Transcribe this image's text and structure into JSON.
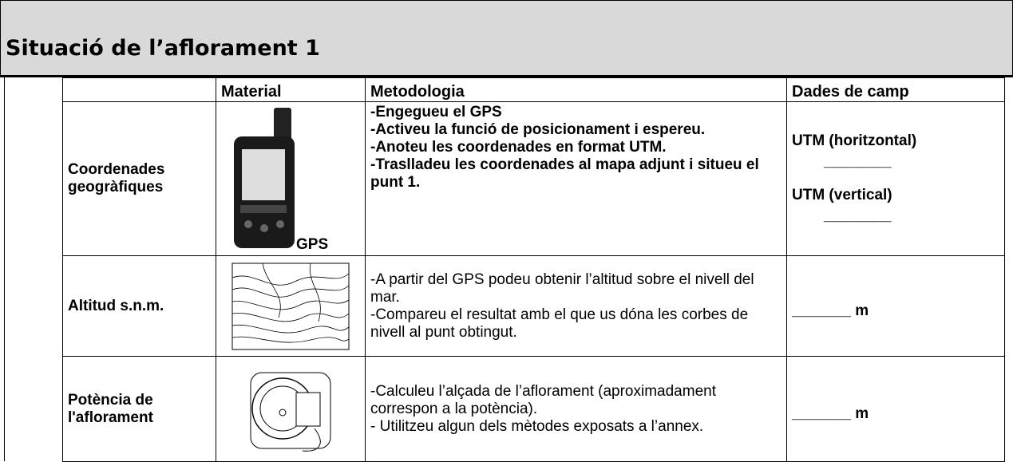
{
  "header": {
    "title": "Situació de l’aflorament 1"
  },
  "table": {
    "columns": [
      "Material",
      "Metodologia",
      "Dades de camp"
    ],
    "rows": [
      {
        "label": "Coordenades geogràfiques",
        "material_caption": "GPS",
        "methodology": [
          "-Engegueu el GPS",
          "-Activeu la funció de posicionament i espereu.",
          "-Anoteu les coordenades en format UTM.",
          "-Traslladeu les coordenades al mapa adjunt i situeu el punt 1."
        ],
        "field_data": [
          "UTM (horitzontal)",
          "________",
          "UTM (vertical)",
          "________"
        ]
      },
      {
        "label": "Altitud s.n.m.",
        "methodology": [
          "-A partir del GPS podeu obtenir l’altitud sobre el nivell del mar.",
          "-Compareu el resultat amb el que us dóna les corbes de nivell al punt obtingut."
        ],
        "field_data": [
          "_______ m"
        ]
      },
      {
        "label": "Potència de l'aflorament",
        "methodology": [
          "-Calculeu l’alçada de l’aflorament (aproximadament correspon a la potència).",
          "- Utilitzeu algun dels mètodes exposats a l’annex."
        ],
        "field_data": [
          "_______ m"
        ]
      }
    ]
  }
}
